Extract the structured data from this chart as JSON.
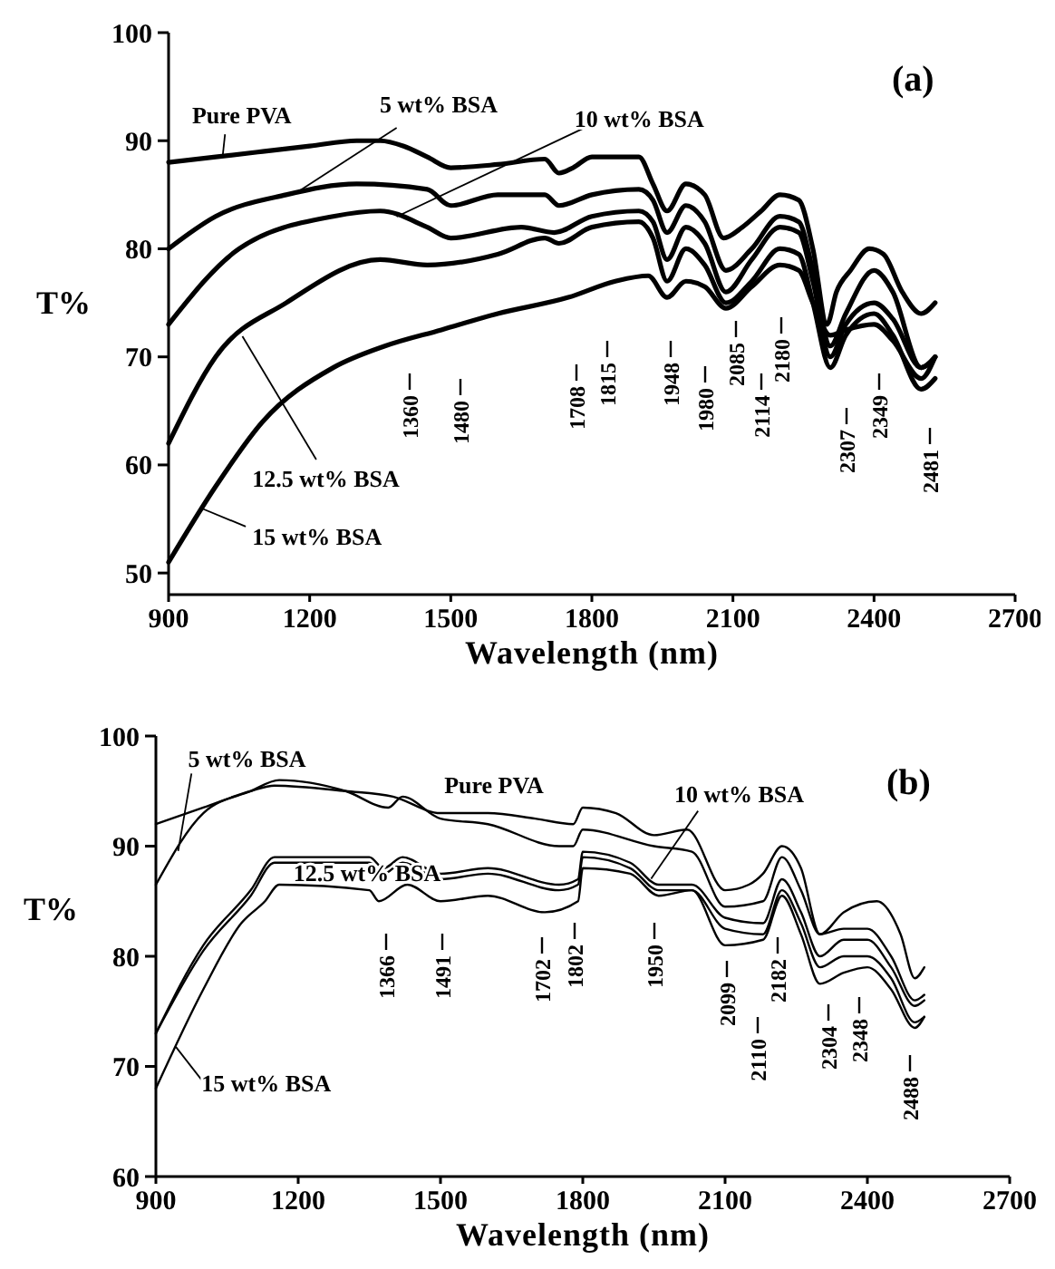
{
  "chart_data": [
    {
      "type": "line",
      "title": "(a)",
      "xlabel": "Wavelength (nm)",
      "ylabel": "T%",
      "xlim": [
        900,
        2700
      ],
      "xticks": [
        900,
        1200,
        1500,
        1800,
        2100,
        2400,
        2700
      ],
      "ylim": [
        48,
        100
      ],
      "yticks": [
        50,
        60,
        70,
        80,
        90,
        100
      ],
      "series": [
        {
          "name": "Pure PVA",
          "color": "#000000",
          "x": [
            900,
            1000,
            1100,
            1200,
            1300,
            1350,
            1400,
            1450,
            1500,
            1600,
            1700,
            1730,
            1760,
            1800,
            1850,
            1900,
            1930,
            1960,
            2000,
            2040,
            2080,
            2120,
            2160,
            2200,
            2240,
            2270,
            2300,
            2320,
            2350,
            2390,
            2420,
            2460,
            2500,
            2530
          ],
          "values": [
            88,
            88.5,
            89,
            89.5,
            90,
            90,
            89.5,
            88.5,
            87.5,
            87.8,
            88.3,
            87,
            87.5,
            88.5,
            88.5,
            88.5,
            86,
            83.5,
            86,
            85,
            81,
            82,
            83.5,
            85,
            84.5,
            80,
            73,
            76,
            78,
            80,
            79.5,
            76,
            74,
            75
          ]
        },
        {
          "name": "5 wt% BSA",
          "color": "#000000",
          "x": [
            900,
            1000,
            1150,
            1300,
            1450,
            1500,
            1600,
            1700,
            1730,
            1800,
            1900,
            1930,
            1960,
            2000,
            2040,
            2085,
            2140,
            2200,
            2240,
            2270,
            2307,
            2340,
            2400,
            2440,
            2500,
            2530
          ],
          "values": [
            80,
            83,
            85,
            86,
            85.5,
            84,
            85,
            85,
            84,
            85,
            85.5,
            84.5,
            81.5,
            84,
            82.5,
            78,
            80,
            83,
            82.5,
            78,
            71,
            74,
            78,
            76,
            69,
            70
          ]
        },
        {
          "name": "10 wt% BSA",
          "color": "#000000",
          "x": [
            900,
            1050,
            1250,
            1350,
            1450,
            1500,
            1650,
            1720,
            1800,
            1900,
            1930,
            1960,
            2000,
            2040,
            2085,
            2140,
            2200,
            2240,
            2270,
            2307,
            2340,
            2400,
            2440,
            2500,
            2530
          ],
          "values": [
            73,
            80,
            83,
            83.5,
            82,
            81,
            82,
            81.5,
            83,
            83.5,
            82.5,
            79,
            82,
            80.5,
            76,
            79,
            82,
            81.5,
            77,
            70,
            73,
            75,
            73.5,
            69,
            70
          ]
        },
        {
          "name": "12.5 wt% BSA",
          "color": "#000000",
          "x": [
            900,
            1000,
            1150,
            1350,
            1450,
            1600,
            1700,
            1730,
            1800,
            1900,
            1930,
            1960,
            2000,
            2040,
            2085,
            2140,
            2200,
            2240,
            2270,
            2307,
            2340,
            2400,
            2440,
            2500,
            2530
          ],
          "values": [
            62,
            70,
            75,
            79,
            78.5,
            79.5,
            81,
            80.5,
            82,
            82.5,
            81,
            77,
            80,
            78.5,
            75,
            77,
            80,
            79.5,
            75,
            69,
            72,
            74,
            72,
            67,
            68
          ]
        },
        {
          "name": "15 wt% BSA",
          "color": "#000000",
          "x": [
            900,
            1000,
            1100,
            1250,
            1360,
            1480,
            1600,
            1750,
            1850,
            1920,
            1960,
            2000,
            2040,
            2085,
            2140,
            2200,
            2240,
            2270,
            2307,
            2340,
            2400,
            2440,
            2500,
            2530
          ],
          "values": [
            51,
            58,
            64,
            69,
            71,
            72.5,
            74,
            75.5,
            77,
            77.5,
            75.5,
            77,
            76.5,
            74.5,
            76.5,
            78.5,
            78,
            75,
            72,
            72.5,
            73,
            71.5,
            68,
            70
          ]
        }
      ],
      "annotations": [
        "1360",
        "1480",
        "1708",
        "1815",
        "1948",
        "1980",
        "2085",
        "2114",
        "2180",
        "2307",
        "2349",
        "2481"
      ]
    },
    {
      "type": "line",
      "title": "(b)",
      "xlabel": "Wavelength (nm)",
      "ylabel": "T%",
      "xlim": [
        900,
        2700
      ],
      "xticks": [
        900,
        1200,
        1500,
        1800,
        2100,
        2400,
        2700
      ],
      "ylim": [
        60,
        100
      ],
      "yticks": [
        60,
        70,
        80,
        90,
        100
      ],
      "series": [
        {
          "name": "Pure PVA",
          "color": "#000000",
          "x": [
            900,
            1000,
            1100,
            1150,
            1300,
            1400,
            1500,
            1600,
            1700,
            1780,
            1800,
            1870,
            1950,
            2020,
            2100,
            2150,
            2180,
            2220,
            2260,
            2300,
            2350,
            2420,
            2470,
            2500,
            2520
          ],
          "values": [
            92,
            93.5,
            95,
            95.5,
            95,
            94.5,
            93,
            93,
            92.5,
            92,
            93.5,
            93,
            91,
            91.5,
            86,
            86.5,
            87.5,
            90,
            88,
            82,
            84,
            85,
            82,
            78,
            79
          ]
        },
        {
          "name": "5 wt% BSA",
          "color": "#000000",
          "x": [
            900,
            1000,
            1100,
            1160,
            1300,
            1390,
            1420,
            1500,
            1600,
            1750,
            1780,
            1800,
            1950,
            2030,
            2100,
            2180,
            2220,
            2260,
            2300,
            2350,
            2400,
            2450,
            2500,
            2520
          ],
          "values": [
            86.5,
            93,
            95,
            96,
            95,
            93.5,
            94.5,
            92.5,
            92,
            90,
            90,
            91.5,
            90,
            89.5,
            84.5,
            85,
            89,
            86,
            82,
            82.5,
            82.5,
            80,
            76,
            76.5
          ]
        },
        {
          "name": "10 wt% BSA",
          "color": "#000000",
          "x": [
            900,
            1000,
            1100,
            1150,
            1350,
            1380,
            1420,
            1500,
            1600,
            1750,
            1790,
            1800,
            1900,
            1960,
            2030,
            2100,
            2180,
            2220,
            2260,
            2300,
            2350,
            2400,
            2450,
            2500,
            2520
          ],
          "values": [
            73,
            81,
            86,
            89,
            89,
            88,
            89,
            87.5,
            88,
            86.5,
            87,
            89.5,
            88.5,
            86.5,
            86.5,
            83.5,
            83,
            87,
            84,
            80,
            81.5,
            81.5,
            79,
            75.5,
            76
          ]
        },
        {
          "name": "12.5 wt% BSA",
          "color": "#000000",
          "x": [
            900,
            1000,
            1100,
            1150,
            1350,
            1380,
            1420,
            1500,
            1600,
            1750,
            1790,
            1800,
            1900,
            1960,
            2030,
            2100,
            2180,
            2220,
            2260,
            2300,
            2350,
            2400,
            2450,
            2500,
            2520
          ],
          "values": [
            73,
            80.5,
            85.5,
            88.5,
            88.5,
            87.5,
            88.5,
            87,
            87.5,
            86,
            86.5,
            89,
            88,
            86,
            86,
            82.5,
            82,
            86,
            83,
            79,
            80,
            80,
            78,
            74,
            74.5
          ]
        },
        {
          "name": "15 wt% BSA",
          "color": "#000000",
          "x": [
            900,
            1000,
            1080,
            1130,
            1160,
            1350,
            1370,
            1430,
            1500,
            1600,
            1720,
            1790,
            1800,
            1900,
            1960,
            2030,
            2100,
            2180,
            2220,
            2260,
            2300,
            2350,
            2400,
            2450,
            2500,
            2520
          ],
          "values": [
            68,
            77,
            83,
            85,
            86.5,
            86,
            85,
            86.5,
            85,
            85.5,
            84,
            85,
            88,
            87.5,
            85.5,
            86,
            81,
            81.5,
            85.5,
            82,
            77.5,
            78.5,
            79,
            77,
            73.5,
            74.5
          ]
        }
      ],
      "annotations": [
        "1366",
        "1491",
        "1702",
        "1802",
        "1950",
        "2099",
        "2110",
        "2182",
        "2304",
        "2348",
        "2488"
      ]
    }
  ]
}
